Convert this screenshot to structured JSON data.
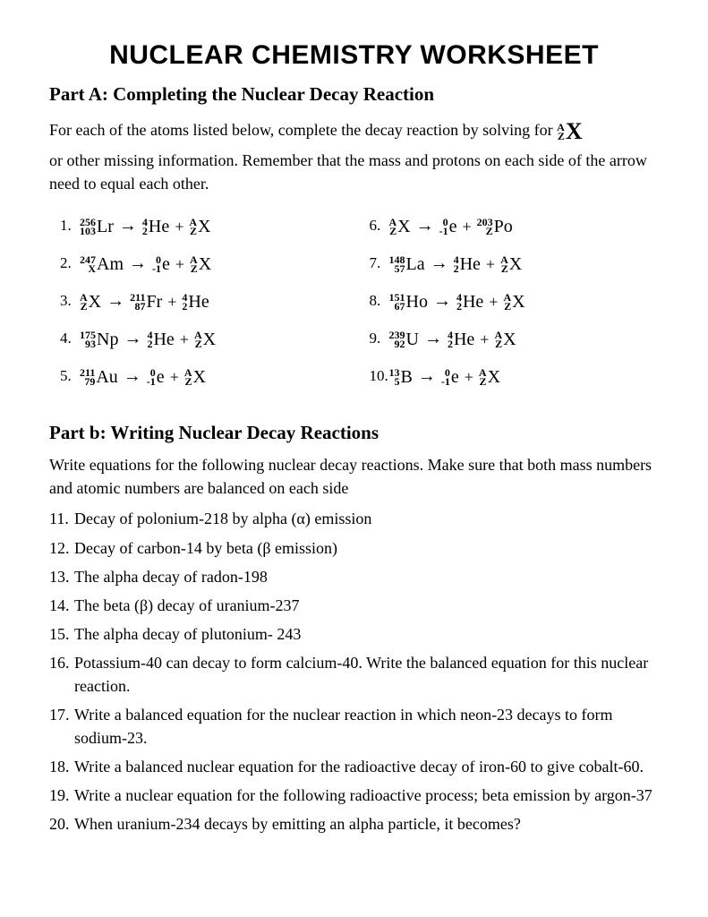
{
  "title": "Nuclear Chemistry Worksheet",
  "partA": {
    "heading": "Part A:  Completing the Nuclear Decay Reaction",
    "instr_pre": "For each of the atoms listed below, complete the decay reaction by solving for ",
    "instr_post": "or other missing information. Remember that the mass and protons on each side of the arrow need to equal each other.",
    "X_mass": "A",
    "X_proton": "Z",
    "X_sym": "X",
    "left": [
      {
        "num": "1.",
        "terms": [
          {
            "mass": "256",
            "proton": "103",
            "sym": "Lr"
          },
          "arrow",
          {
            "mass": "4",
            "proton": "2",
            "sym": "He"
          },
          "plus",
          {
            "mass": "A",
            "proton": "Z",
            "sym": "X"
          }
        ]
      },
      {
        "num": "2.",
        "terms": [
          {
            "mass": "247",
            "proton": "X",
            "sym": "Am"
          },
          "arrow",
          {
            "mass": "0",
            "proton": "-1",
            "sym": "e"
          },
          "plus",
          {
            "mass": "A",
            "proton": "Z",
            "sym": "X"
          }
        ]
      },
      {
        "num": "3.",
        "terms": [
          {
            "mass": "A",
            "proton": "Z",
            "sym": "X"
          },
          "arrow",
          {
            "mass": "211",
            "proton": "87",
            "sym": "Fr"
          },
          "plus",
          {
            "mass": "4",
            "proton": "2",
            "sym": "He"
          }
        ]
      },
      {
        "num": "4.",
        "terms": [
          {
            "mass": "175",
            "proton": "93",
            "sym": "Np"
          },
          "arrow",
          {
            "mass": "4",
            "proton": "2",
            "sym": "He"
          },
          "plus",
          {
            "mass": "A",
            "proton": "Z",
            "sym": "X"
          }
        ]
      },
      {
        "num": "5.",
        "terms": [
          {
            "mass": "211",
            "proton": "79",
            "sym": "Au"
          },
          "arrow",
          {
            "mass": "0",
            "proton": "-1",
            "sym": "e"
          },
          "plus",
          {
            "mass": "A",
            "proton": "Z",
            "sym": "X"
          }
        ]
      }
    ],
    "right": [
      {
        "num": "6.",
        "terms": [
          {
            "mass": "A",
            "proton": "Z",
            "sym": "X"
          },
          "arrow",
          {
            "mass": "0",
            "proton": "-1",
            "sym": "e"
          },
          "plus",
          {
            "mass": "203",
            "proton": "Z",
            "sym": "Po"
          }
        ]
      },
      {
        "num": "7.",
        "terms": [
          {
            "mass": "148",
            "proton": "57",
            "sym": "La"
          },
          "arrow",
          {
            "mass": "4",
            "proton": "2",
            "sym": "He"
          },
          "plus",
          {
            "mass": "A",
            "proton": "Z",
            "sym": "X"
          }
        ]
      },
      {
        "num": "8.",
        "terms": [
          {
            "mass": "151",
            "proton": "67",
            "sym": "Ho"
          },
          "arrow",
          {
            "mass": "4",
            "proton": "2",
            "sym": "He"
          },
          "plus",
          {
            "mass": "A",
            "proton": "Z",
            "sym": "X"
          }
        ]
      },
      {
        "num": "9.",
        "terms": [
          {
            "mass": "239",
            "proton": "92",
            "sym": "U"
          },
          "arrow",
          {
            "mass": "4",
            "proton": "2",
            "sym": "He"
          },
          "plus",
          {
            "mass": "A",
            "proton": "Z",
            "sym": "X"
          }
        ]
      },
      {
        "num": "10.",
        "terms": [
          {
            "mass": "13",
            "proton": "5",
            "sym": "B"
          },
          "arrow",
          {
            "mass": "0",
            "proton": "-1",
            "sym": "e"
          },
          "plus",
          {
            "mass": "A",
            "proton": "Z",
            "sym": "X"
          }
        ]
      }
    ]
  },
  "partB": {
    "heading": "Part b: Writing Nuclear Decay Reactions",
    "instr": "Write equations for the following nuclear decay reactions. Make sure that both mass numbers and atomic numbers are balanced on each side",
    "items": [
      {
        "num": "11.",
        "text": "Decay of polonium-218 by alpha (α) emission"
      },
      {
        "num": "12.",
        "text": "Decay of carbon-14 by beta (β emission)"
      },
      {
        "num": "13.",
        "text": "The alpha decay of radon-198"
      },
      {
        "num": "14.",
        "text": "The beta (β) decay of uranium-237"
      },
      {
        "num": "15.",
        "text": "The alpha decay of plutonium- 243"
      },
      {
        "num": "16.",
        "text": "Potassium-40 can decay to form calcium-40.  Write the balanced equation for this nuclear reaction."
      },
      {
        "num": "17.",
        "text": "Write a balanced equation for the nuclear reaction in which neon-23 decays to form sodium-23."
      },
      {
        "num": "18.",
        "text": "Write a balanced nuclear equation for the radioactive decay of iron-60 to give cobalt-60."
      },
      {
        "num": "19.",
        "text": "Write a nuclear equation for the following radioactive process; beta emission by argon-37"
      },
      {
        "num": "20.",
        "text": "When uranium-234 decays by emitting an alpha particle, it becomes?"
      }
    ]
  },
  "arrow_glyph": "→"
}
